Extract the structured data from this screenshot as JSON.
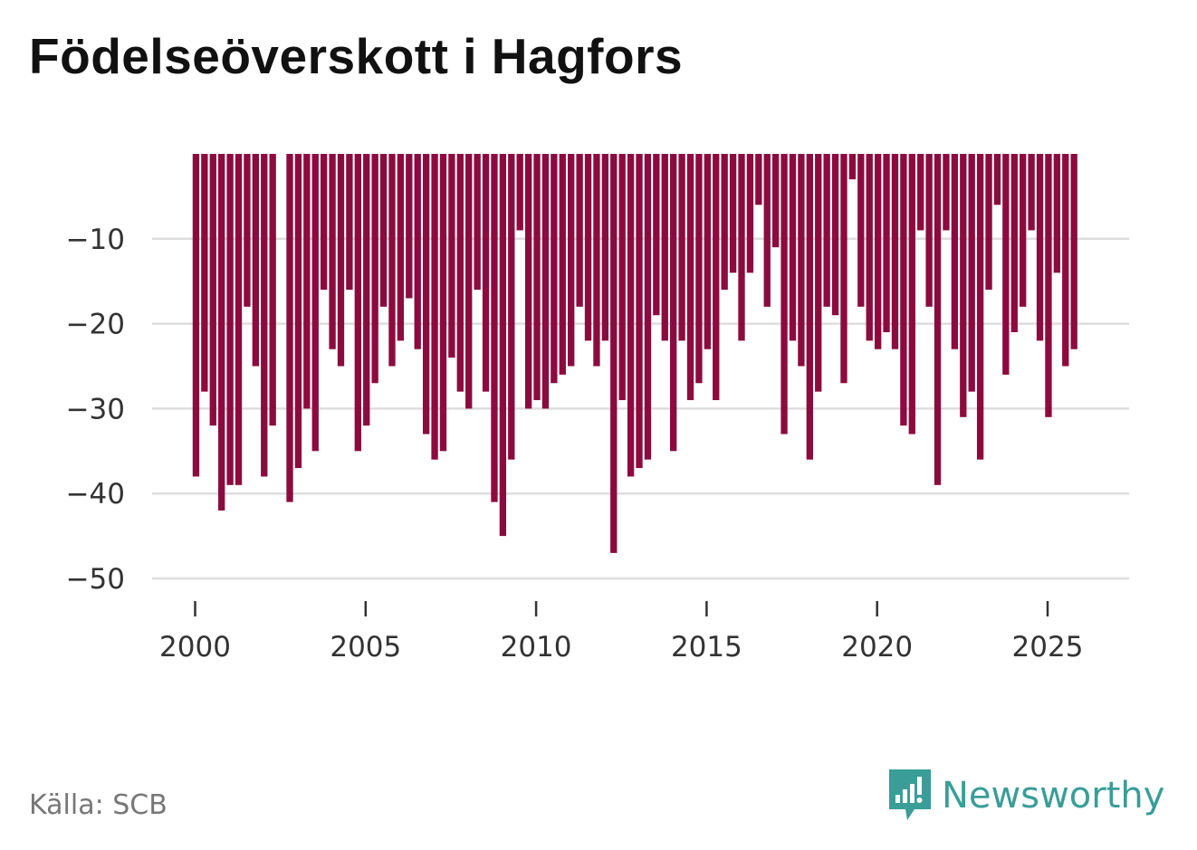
{
  "title": "Födelseöverskott i Hagfors",
  "source": "Källa: SCB",
  "brand": "Newsworthy",
  "colors": {
    "bar": "#8c0b3f",
    "grid": "#dddddd",
    "title": "#111111",
    "brand": "#3a9d98",
    "source": "#777777"
  },
  "chart_data": {
    "type": "bar",
    "title": "Födelseöverskott i Hagfors",
    "xlabel": "",
    "ylabel": "",
    "ylim": [
      -50,
      0
    ],
    "xlim": [
      2000,
      2026
    ],
    "yticks": [
      -10,
      -20,
      -30,
      -40,
      -50
    ],
    "ytick_labels": [
      "−10",
      "−20",
      "−30",
      "−40",
      "−50"
    ],
    "xticks": [
      2000,
      2005,
      2010,
      2015,
      2020,
      2025
    ],
    "xtick_labels": [
      "2000",
      "2005",
      "2010",
      "2015",
      "2020",
      "2025"
    ],
    "grid": true,
    "x_start": 2000,
    "periods_per_year": 4,
    "values": [
      -38,
      -28,
      -32,
      -42,
      -39,
      -39,
      -18,
      -25,
      -38,
      -32,
      0,
      -41,
      -37,
      -30,
      -35,
      -16,
      -23,
      -25,
      -16,
      -35,
      -32,
      -27,
      -18,
      -25,
      -22,
      -17,
      -23,
      -33,
      -36,
      -35,
      -24,
      -28,
      -30,
      -16,
      -28,
      -41,
      -45,
      -36,
      -9,
      -30,
      -29,
      -30,
      -27,
      -26,
      -25,
      -18,
      -22,
      -25,
      -22,
      -47,
      -29,
      -38,
      -37,
      -36,
      -19,
      -22,
      -35,
      -22,
      -29,
      -27,
      -23,
      -29,
      -16,
      -14,
      -22,
      -14,
      -6,
      -18,
      -11,
      -33,
      -22,
      -25,
      -36,
      -28,
      -18,
      -19,
      -27,
      -3,
      -18,
      -22,
      -23,
      -21,
      -23,
      -32,
      -33,
      -9,
      -18,
      -39,
      -9,
      -23,
      -31,
      -28,
      -36,
      -16,
      -6,
      -26,
      -21,
      -18,
      -9,
      -22,
      -31,
      -14,
      -25,
      -23
    ]
  }
}
